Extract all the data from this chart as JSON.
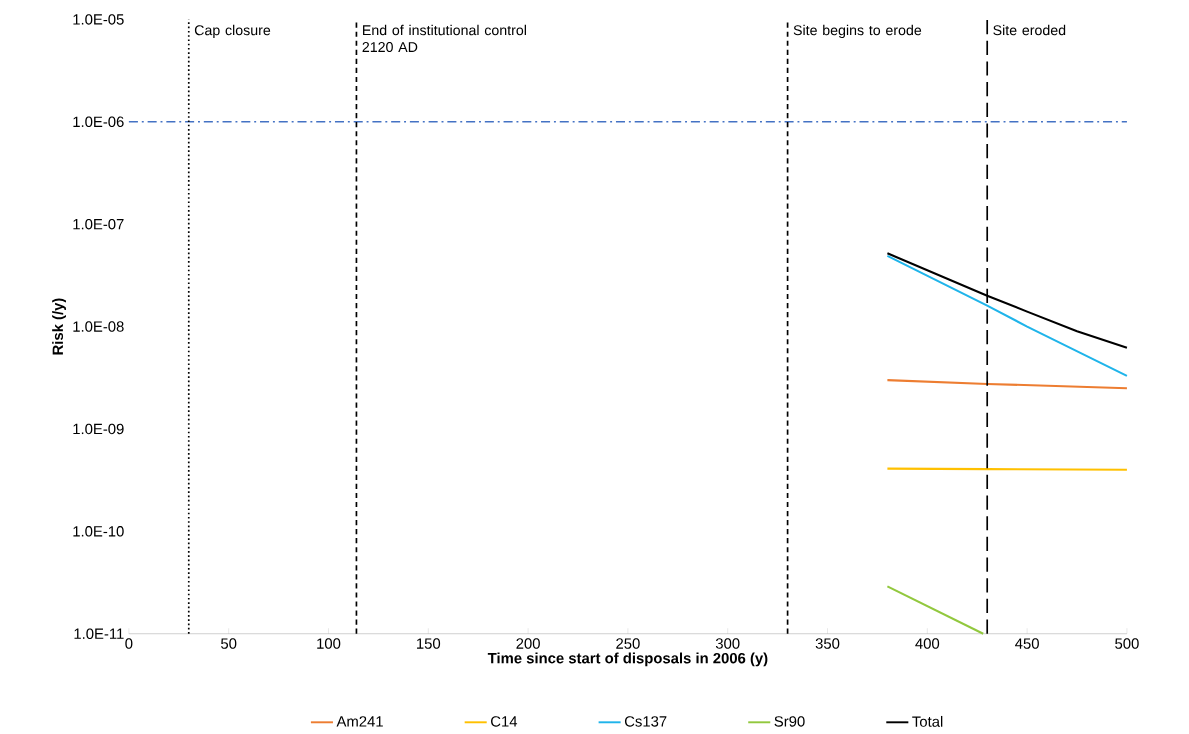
{
  "chart_data": {
    "type": "line",
    "xlabel": "Time since start of disposals in 2006 (y)",
    "ylabel": "Risk (/y)",
    "log": "y",
    "xlim": [
      0,
      500
    ],
    "xticks": [
      0,
      50,
      100,
      150,
      200,
      250,
      300,
      350,
      400,
      450,
      500
    ],
    "ylim": [
      1e-11,
      1e-05
    ],
    "yticks": [
      {
        "value": 1e-11,
        "label": "1.0E-11"
      },
      {
        "value": 1e-10,
        "label": "1.0E-10"
      },
      {
        "value": 1e-09,
        "label": "1.0E-09"
      },
      {
        "value": 1e-08,
        "label": "1.0E-08"
      },
      {
        "value": 1e-07,
        "label": "1.0E-07"
      },
      {
        "value": 1e-06,
        "label": "1.0E-06"
      },
      {
        "value": 1e-05,
        "label": "1.0E-05"
      }
    ],
    "grid": false,
    "legend": "bottom",
    "marker": "none",
    "line_style": "solid",
    "series": [
      {
        "name": "Am241",
        "color": "#ed7d31",
        "x": [
          380,
          430,
          500
        ],
        "values": [
          3e-09,
          2.75e-09,
          2.5e-09
        ]
      },
      {
        "name": "C14",
        "color": "#ffc000",
        "x": [
          380,
          430,
          500
        ],
        "values": [
          4.1e-10,
          4.05e-10,
          4e-10
        ]
      },
      {
        "name": "Cs137",
        "color": "#1fb4ea",
        "x": [
          380,
          430,
          450,
          500
        ],
        "values": [
          4.9e-08,
          1.6e-08,
          1e-08,
          3.3e-09
        ]
      },
      {
        "name": "Sr90",
        "color": "#92c83e",
        "x": [
          380,
          428
        ],
        "values": [
          2.9e-11,
          1e-11
        ]
      },
      {
        "name": "Total",
        "color": "#000000",
        "x": [
          380,
          430,
          450,
          475,
          500
        ],
        "values": [
          5.2e-08,
          2e-08,
          1.4e-08,
          9e-09,
          6.2e-09
        ]
      }
    ],
    "ref_lines": [
      {
        "axis": "y",
        "value": 1e-06,
        "label": null,
        "color": "#4472c4",
        "line_style": "dashdot"
      },
      {
        "axis": "x",
        "value": 30,
        "label": "Cap closure",
        "color": "#000000",
        "line_style": "dotted"
      },
      {
        "axis": "x",
        "value": 114,
        "label": "End of institutional control 2120 AD",
        "color": "#000000",
        "line_style": "dashed"
      },
      {
        "axis": "x",
        "value": 330,
        "label": "Site begins to erode",
        "color": "#000000",
        "line_style": "dashed"
      },
      {
        "axis": "x",
        "value": 430,
        "label": "Site eroded",
        "color": "#000000",
        "line_style": "long dashed"
      }
    ]
  }
}
